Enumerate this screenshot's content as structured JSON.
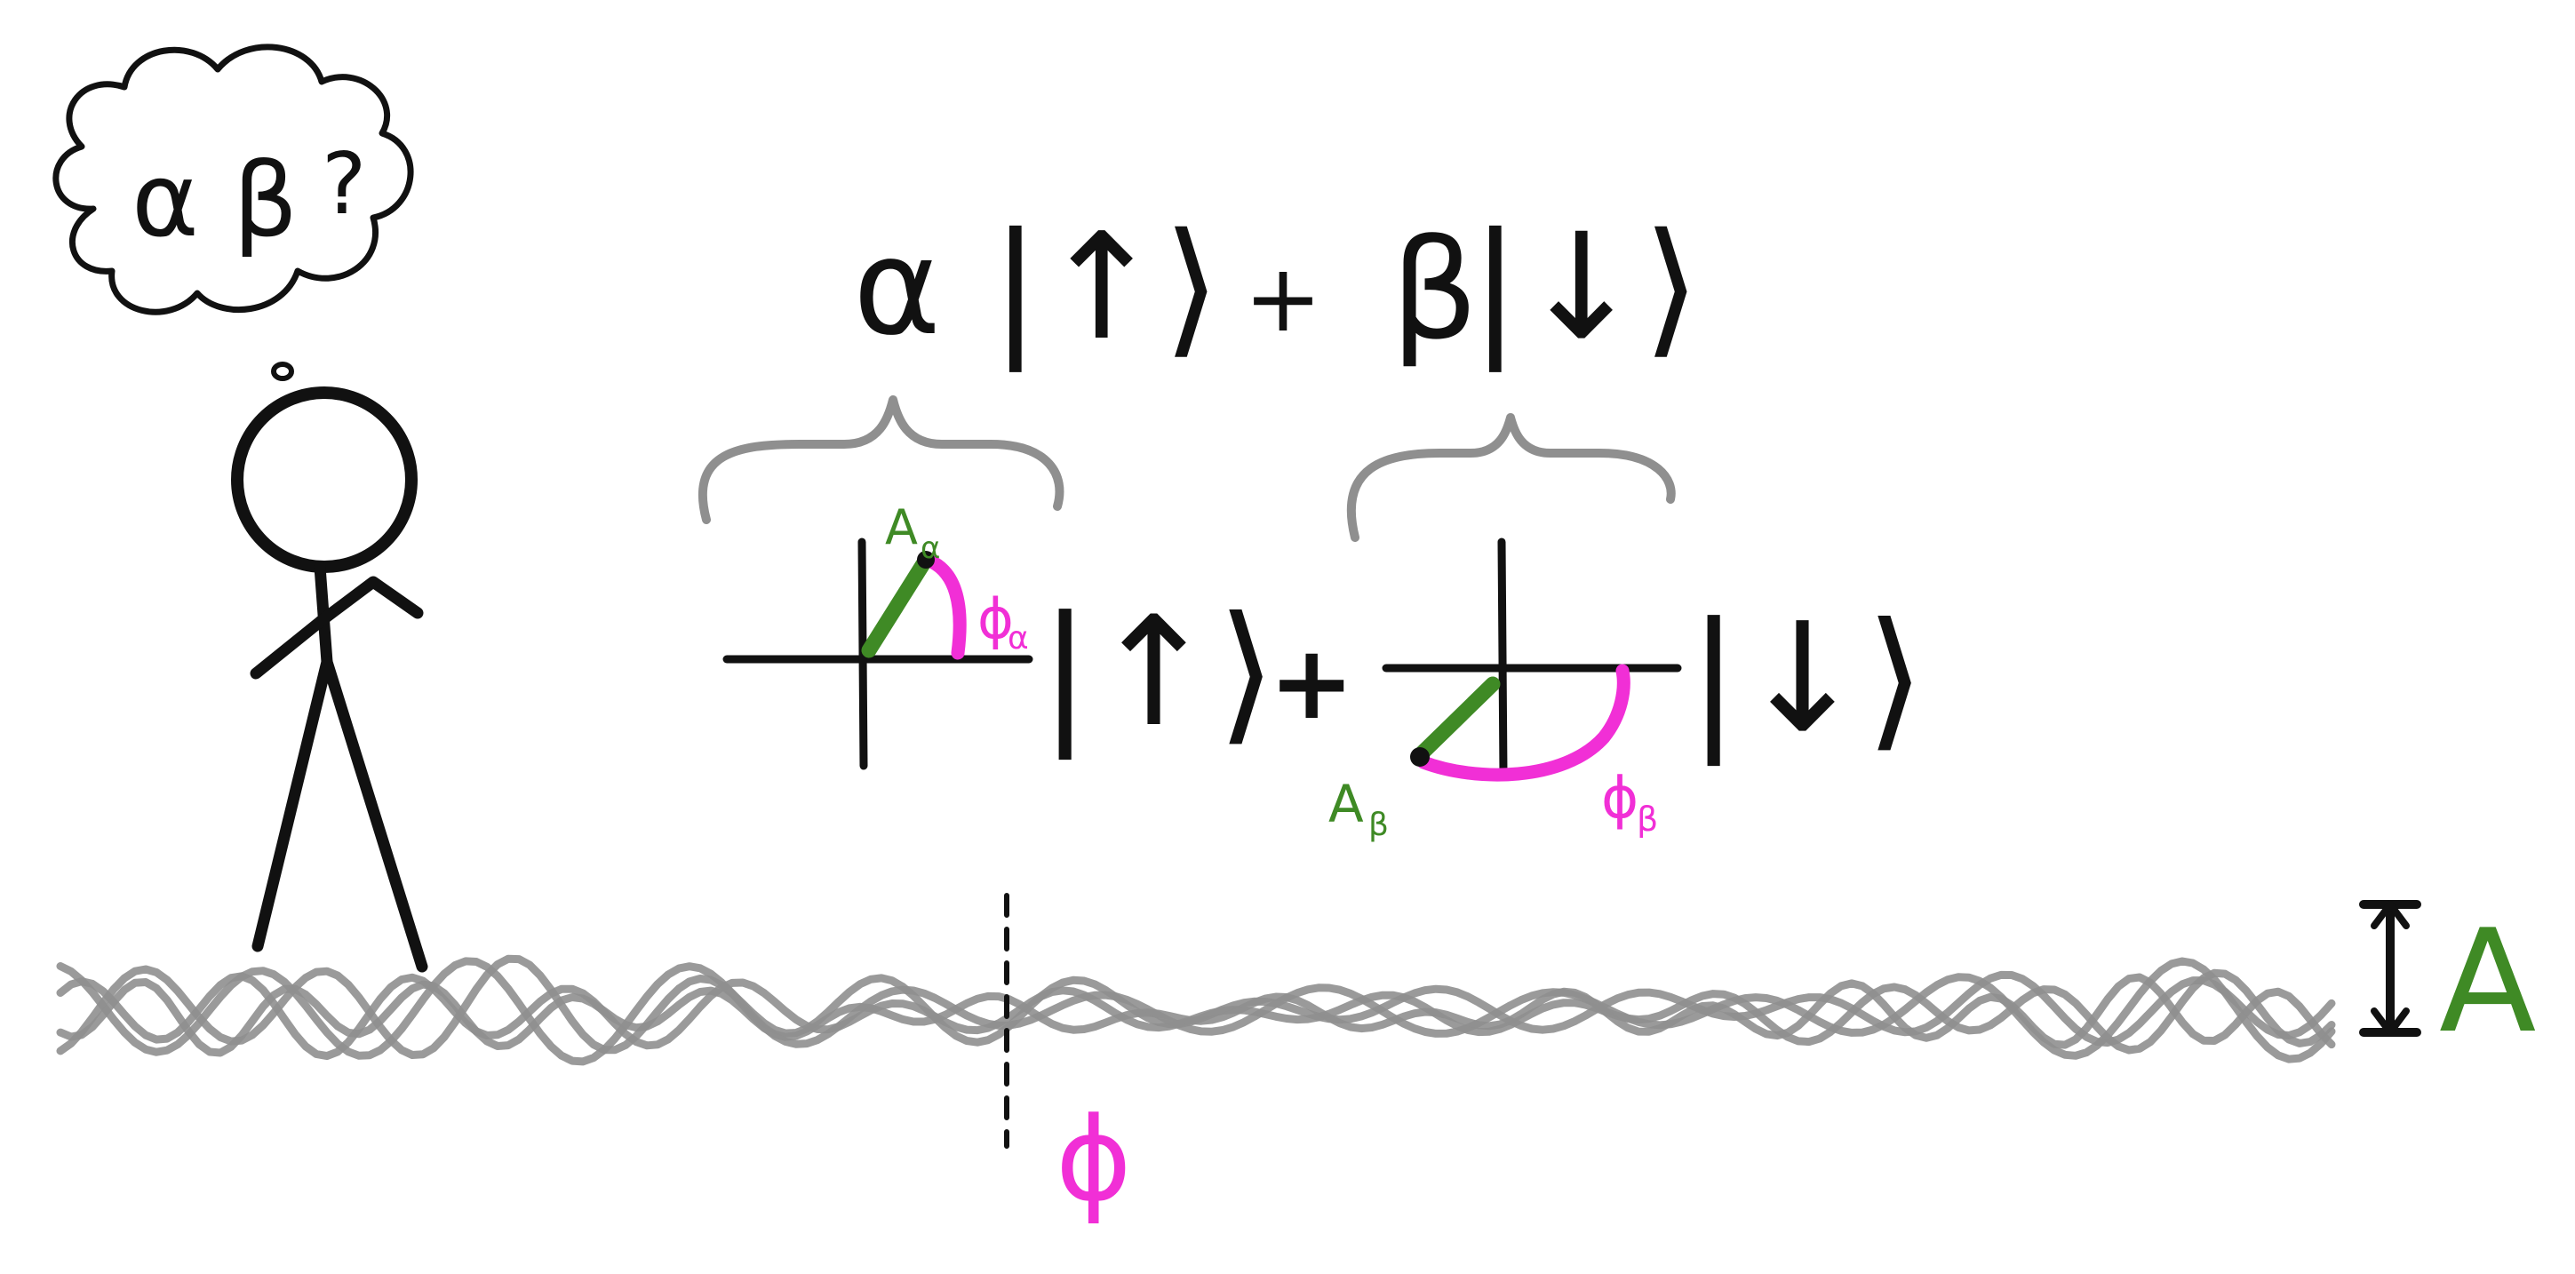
{
  "thought_bubble": {
    "alpha": "α",
    "beta": "β",
    "question": "?"
  },
  "top_equation": {
    "alpha": "α",
    "ket_up": "|↑⟩",
    "plus": "+",
    "beta": "β",
    "ket_down": "|↓⟩"
  },
  "phasor_equation": {
    "amplitude_alpha": "A",
    "amplitude_alpha_sub": "α",
    "phase_alpha": "ϕ",
    "phase_alpha_sub": "α",
    "ket_up": "|↑⟩",
    "plus": "+",
    "amplitude_beta": "A",
    "amplitude_beta_sub": "β",
    "phase_beta": "ϕ",
    "phase_beta_sub": "β",
    "ket_down": "|↓⟩"
  },
  "wave_labels": {
    "phase": "ϕ",
    "amplitude": "A"
  },
  "colors": {
    "ink": "#111111",
    "pencil": "#8f8f8f",
    "amplitude_green": "#3f8a25",
    "phase_pink": "#f12fd6"
  }
}
